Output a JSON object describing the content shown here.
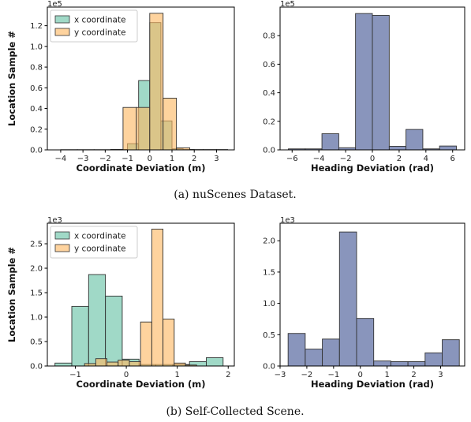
{
  "captions": {
    "a": "(a)  nuScenes Dataset.",
    "b": "(b)  Self-Collected Scene."
  },
  "colors": {
    "x_fill": "#66c2a5",
    "y_fill": "#fdb863",
    "heading_fill": "#6b7bab"
  },
  "chart_data": [
    {
      "type": "bar",
      "panel": "top-left",
      "xlabel": "Coordinate Deviation (m)",
      "ylabel": "Location Sample #",
      "y_multiplier": "1e5",
      "xlim": [
        -4.6,
        3.8
      ],
      "ylim": [
        0,
        1.38
      ],
      "xticks": [
        -4,
        -3,
        -2,
        -1,
        0,
        1,
        2,
        3
      ],
      "yticks": [
        0.0,
        0.2,
        0.4,
        0.6,
        0.8,
        1.0,
        1.2
      ],
      "ytick_labels": [
        "0.0",
        "0.2",
        "0.4",
        "0.6",
        "0.8",
        "1.0",
        "1.2"
      ],
      "legend": {
        "position": "upper-left",
        "entries": [
          "x coordinate",
          "y coordinate"
        ]
      },
      "series": [
        {
          "name": "x coordinate",
          "color": "#66c2a5",
          "bins": [
            [
              -4.0,
              -3.25,
              0.002
            ],
            [
              -3.25,
              -2.5,
              0.002
            ],
            [
              -2.5,
              -1.75,
              0.002
            ],
            [
              -1.75,
              -1.0,
              0.004
            ],
            [
              -1.0,
              -0.5,
              0.06
            ],
            [
              -0.5,
              0.0,
              0.67
            ],
            [
              0.0,
              0.5,
              1.23
            ],
            [
              0.5,
              1.0,
              0.28
            ],
            [
              1.0,
              1.5,
              0.01
            ],
            [
              1.5,
              2.0,
              0.003
            ]
          ]
        },
        {
          "name": "y coordinate",
          "color": "#fdb863",
          "bins": [
            [
              -1.2,
              -0.6,
              0.41
            ],
            [
              -0.6,
              0.0,
              0.41
            ],
            [
              0.0,
              0.6,
              1.32
            ],
            [
              0.6,
              1.2,
              0.5
            ],
            [
              1.2,
              1.8,
              0.02
            ],
            [
              1.8,
              2.4,
              0.003
            ],
            [
              2.4,
              3.0,
              0.003
            ],
            [
              3.0,
              3.5,
              0.003
            ]
          ]
        }
      ]
    },
    {
      "type": "bar",
      "panel": "top-right",
      "xlabel": "Heading Deviation (rad)",
      "ylabel": "",
      "y_multiplier": "1e5",
      "xlim": [
        -6.9,
        6.9
      ],
      "ylim": [
        0,
        1.0
      ],
      "xticks": [
        -6,
        -4,
        -2,
        0,
        2,
        4,
        6
      ],
      "yticks": [
        0.0,
        0.2,
        0.4,
        0.6,
        0.8
      ],
      "ytick_labels": [
        "0.0",
        "0.2",
        "0.4",
        "0.6",
        "0.8"
      ],
      "series": [
        {
          "name": "",
          "color": "#6b7bab",
          "bins": [
            [
              -6.28,
              -5.02,
              0.007
            ],
            [
              -5.02,
              -3.77,
              0.007
            ],
            [
              -3.77,
              -2.51,
              0.113
            ],
            [
              -2.51,
              -1.26,
              0.015
            ],
            [
              -1.26,
              0.0,
              0.955
            ],
            [
              0.0,
              1.26,
              0.942
            ],
            [
              1.26,
              2.51,
              0.025
            ],
            [
              2.51,
              3.77,
              0.143
            ],
            [
              3.77,
              5.02,
              0.007
            ],
            [
              5.02,
              6.28,
              0.027
            ]
          ]
        }
      ]
    },
    {
      "type": "bar",
      "panel": "bottom-left",
      "xlabel": "Coordinate Deviation (m)",
      "ylabel": "Location Sample #",
      "y_multiplier": "1e3",
      "xlim": [
        -1.55,
        2.12
      ],
      "ylim": [
        0,
        2.92
      ],
      "xticks": [
        -1,
        0,
        1,
        2
      ],
      "yticks": [
        0.0,
        0.5,
        1.0,
        1.5,
        2.0,
        2.5
      ],
      "ytick_labels": [
        "0.0",
        "0.5",
        "1.0",
        "1.5",
        "2.0",
        "2.5"
      ],
      "legend": {
        "position": "upper-left",
        "entries": [
          "x coordinate",
          "y coordinate"
        ]
      },
      "series": [
        {
          "name": "x coordinate",
          "color": "#66c2a5",
          "bins": [
            [
              -1.4,
              -1.07,
              0.06
            ],
            [
              -1.07,
              -0.74,
              1.22
            ],
            [
              -0.74,
              -0.41,
              1.87
            ],
            [
              -0.41,
              -0.08,
              1.43
            ],
            [
              -0.08,
              0.25,
              0.14
            ],
            [
              0.25,
              0.58,
              0.03
            ],
            [
              0.58,
              0.91,
              0.03
            ],
            [
              0.91,
              1.24,
              0.03
            ],
            [
              1.24,
              1.57,
              0.09
            ],
            [
              1.57,
              1.9,
              0.17
            ]
          ]
        },
        {
          "name": "y coordinate",
          "color": "#fdb863",
          "bins": [
            [
              -0.82,
              -0.6,
              0.05
            ],
            [
              -0.6,
              -0.38,
              0.15
            ],
            [
              -0.38,
              -0.16,
              0.08
            ],
            [
              -0.16,
              0.06,
              0.12
            ],
            [
              0.06,
              0.28,
              0.09
            ],
            [
              0.28,
              0.5,
              0.9
            ],
            [
              0.5,
              0.72,
              2.8
            ],
            [
              0.72,
              0.94,
              0.96
            ],
            [
              0.94,
              1.16,
              0.06
            ],
            [
              1.16,
              1.38,
              0.02
            ]
          ]
        }
      ]
    },
    {
      "type": "bar",
      "panel": "bottom-right",
      "xlabel": "Heading Deviation (rad)",
      "ylabel": "",
      "y_multiplier": "1e3",
      "xlim": [
        -3.0,
        3.9
      ],
      "ylim": [
        0,
        2.28
      ],
      "xticks": [
        -3,
        -2,
        -1,
        0,
        1,
        2,
        3
      ],
      "yticks": [
        0.0,
        0.5,
        1.0,
        1.5,
        2.0
      ],
      "ytick_labels": [
        "0.0",
        "0.5",
        "1.0",
        "1.5",
        "2.0"
      ],
      "series": [
        {
          "name": "",
          "color": "#6b7bab",
          "bins": [
            [
              -2.7,
              -2.06,
              0.52
            ],
            [
              -2.06,
              -1.42,
              0.27
            ],
            [
              -1.42,
              -0.78,
              0.43
            ],
            [
              -0.78,
              -0.14,
              2.14
            ],
            [
              -0.14,
              0.5,
              0.76
            ],
            [
              0.5,
              1.14,
              0.08
            ],
            [
              1.14,
              1.78,
              0.07
            ],
            [
              1.78,
              2.42,
              0.07
            ],
            [
              2.42,
              3.06,
              0.21
            ],
            [
              3.06,
              3.7,
              0.42
            ]
          ]
        }
      ]
    }
  ]
}
